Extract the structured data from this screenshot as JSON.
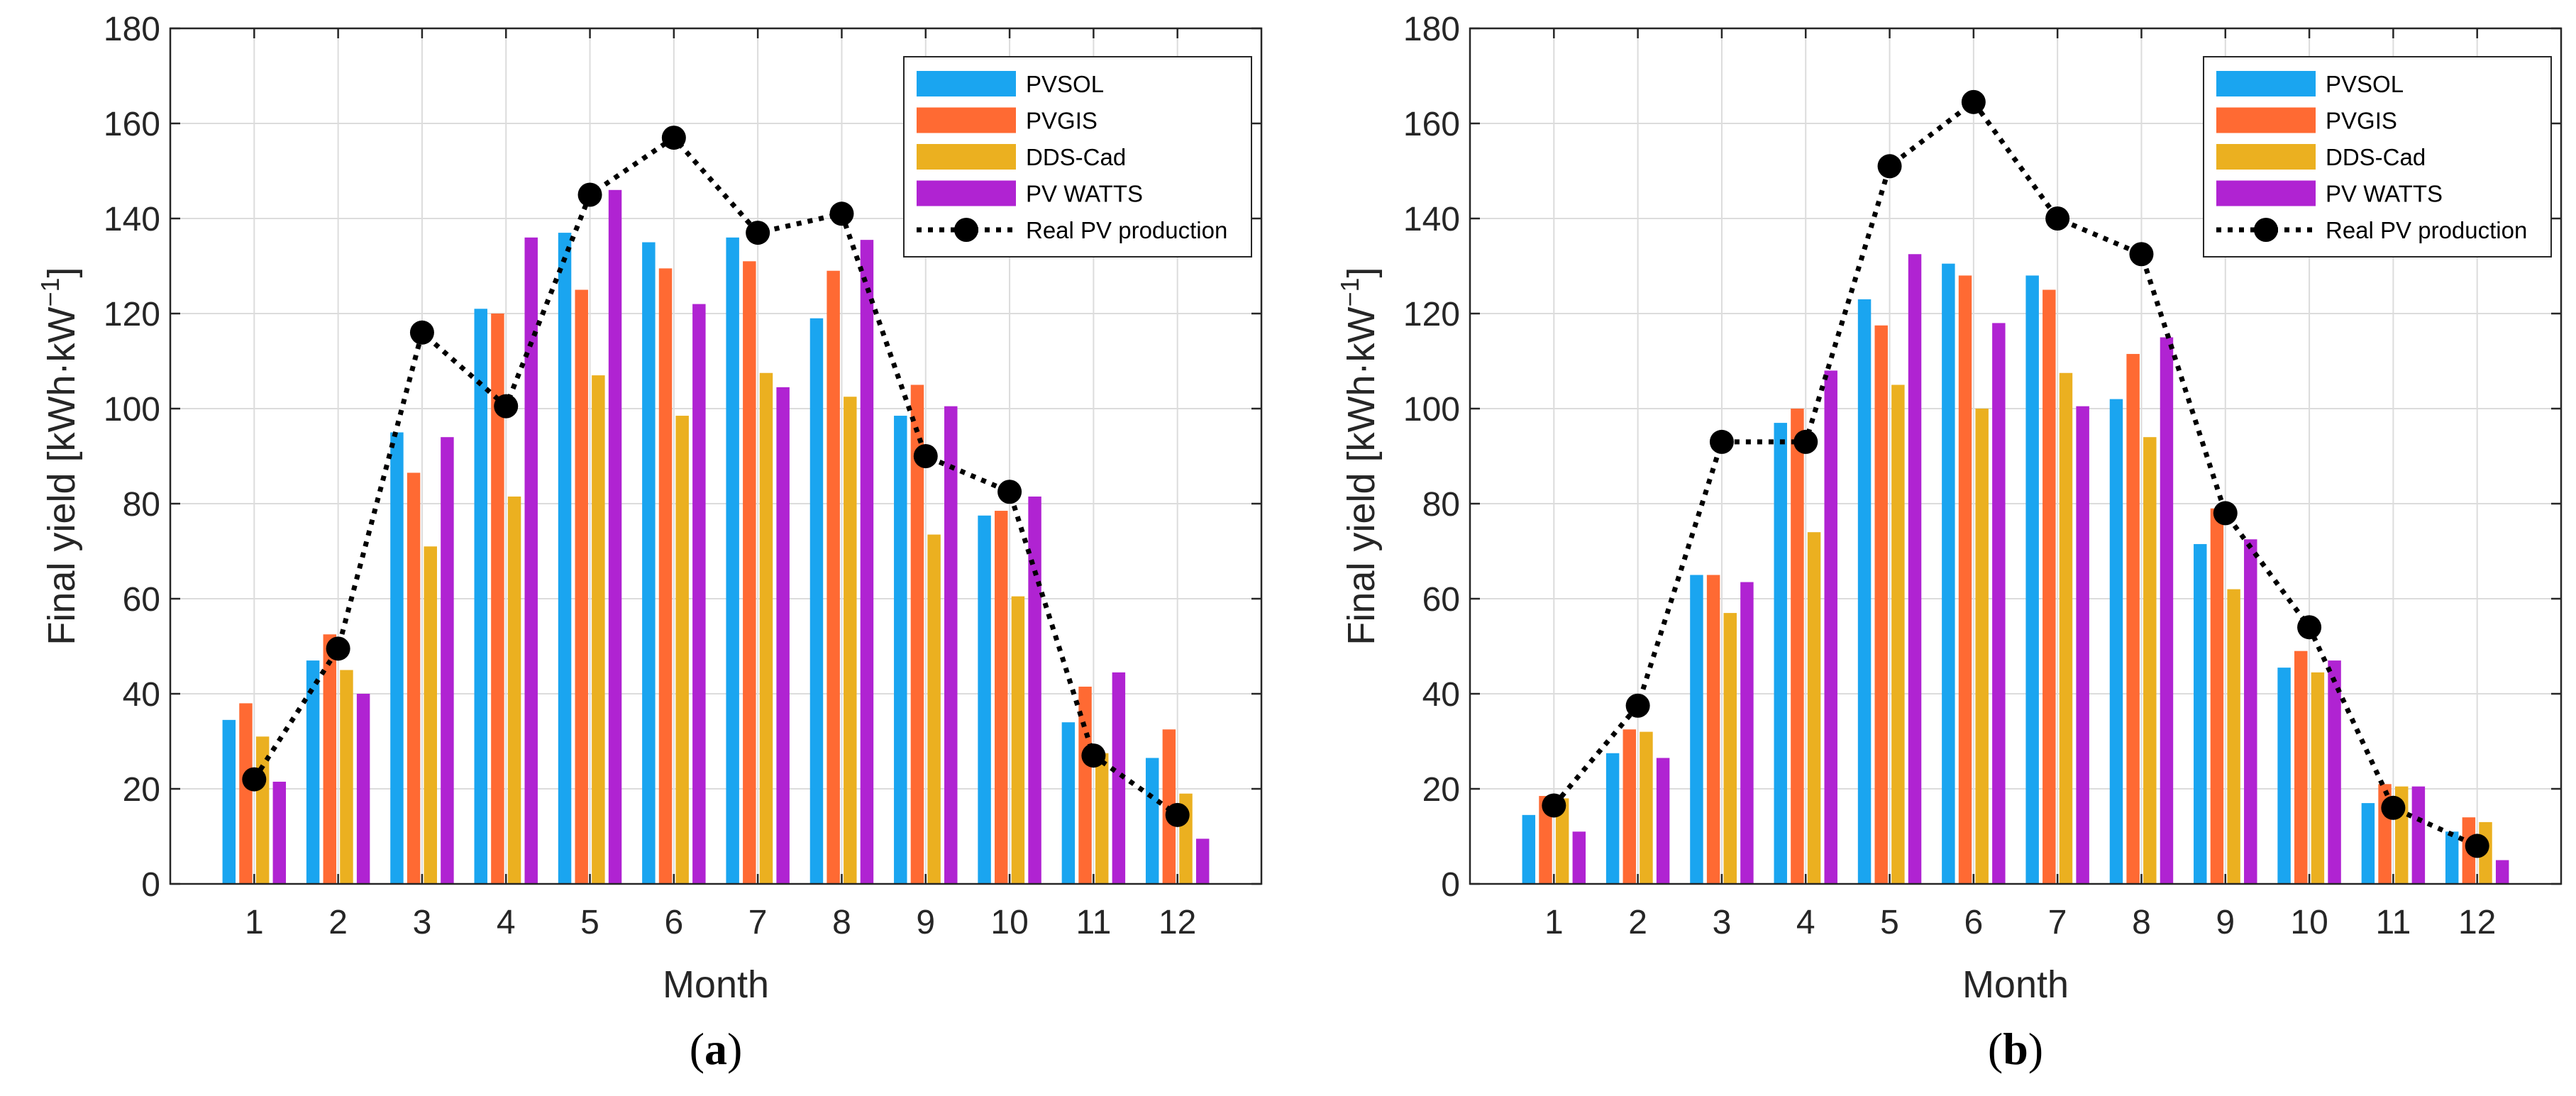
{
  "chart_data": [
    {
      "type": "bar",
      "panel_label": "a",
      "categories": [
        "1",
        "2",
        "3",
        "4",
        "5",
        "6",
        "7",
        "8",
        "9",
        "10",
        "11",
        "12"
      ],
      "xlabel": "Month",
      "ylabel": "Final yield [kWh·kW",
      "ylabel_sup": "−1",
      "ylabel_end": "]",
      "ylim": [
        0,
        180
      ],
      "yticks": [
        0,
        20,
        40,
        60,
        80,
        100,
        120,
        140,
        160,
        180
      ],
      "grid": true,
      "legend_position": "top-right",
      "series": [
        {
          "name": "PVSOL",
          "kind": "bar",
          "color": "#1aa5f0",
          "values": [
            34.5,
            47,
            95,
            121,
            137,
            135,
            136,
            119,
            98.5,
            77.5,
            34,
            26.5
          ]
        },
        {
          "name": "PVGIS",
          "kind": "bar",
          "color": "#ff6a33",
          "values": [
            38,
            52.5,
            86.5,
            120,
            125,
            129.5,
            131,
            129,
            105,
            78.5,
            41.5,
            32.5
          ]
        },
        {
          "name": "DDS-Cad",
          "kind": "bar",
          "color": "#ebb020",
          "values": [
            31,
            45,
            71,
            81.5,
            107,
            98.5,
            107.5,
            102.5,
            73.5,
            60.5,
            27.5,
            19
          ]
        },
        {
          "name": "PV WATTS",
          "kind": "bar",
          "color": "#b023d2",
          "values": [
            21.5,
            40,
            94,
            136,
            146,
            122,
            104.5,
            135.5,
            100.5,
            81.5,
            44.5,
            9.5
          ]
        },
        {
          "name": "Real PV production",
          "kind": "line",
          "color": "#000000",
          "values": [
            22,
            49.5,
            116,
            100.5,
            145,
            157,
            137,
            141,
            90,
            82.5,
            27,
            14.5
          ]
        }
      ]
    },
    {
      "type": "bar",
      "panel_label": "b",
      "categories": [
        "1",
        "2",
        "3",
        "4",
        "5",
        "6",
        "7",
        "8",
        "9",
        "10",
        "11",
        "12"
      ],
      "xlabel": "Month",
      "ylabel": "Final yield [kWh·kW",
      "ylabel_sup": "−1",
      "ylabel_end": "]",
      "ylim": [
        0,
        180
      ],
      "yticks": [
        0,
        20,
        40,
        60,
        80,
        100,
        120,
        140,
        160,
        180
      ],
      "grid": true,
      "legend_position": "top-right",
      "series": [
        {
          "name": "PVSOL",
          "kind": "bar",
          "color": "#1aa5f0",
          "values": [
            14.5,
            27.5,
            65,
            97,
            123,
            130.5,
            128,
            102,
            71.5,
            45.5,
            17,
            11
          ]
        },
        {
          "name": "PVGIS",
          "kind": "bar",
          "color": "#ff6a33",
          "values": [
            18.5,
            32.5,
            65,
            100,
            117.5,
            128,
            125,
            111.5,
            79,
            49,
            21,
            14
          ]
        },
        {
          "name": "DDS-Cad",
          "kind": "bar",
          "color": "#ebb020",
          "values": [
            18,
            32,
            57,
            74,
            105,
            100,
            107.5,
            94,
            62,
            44.5,
            20.5,
            13
          ]
        },
        {
          "name": "PV WATTS",
          "kind": "bar",
          "color": "#b023d2",
          "values": [
            11,
            26.5,
            63.5,
            108,
            132.5,
            118,
            100.5,
            115,
            72.5,
            47,
            20.5,
            5
          ]
        },
        {
          "name": "Real PV production",
          "kind": "line",
          "color": "#000000",
          "values": [
            16.5,
            37.5,
            93,
            93,
            151,
            164.5,
            140,
            132.5,
            78,
            54,
            16,
            8
          ]
        }
      ]
    }
  ]
}
